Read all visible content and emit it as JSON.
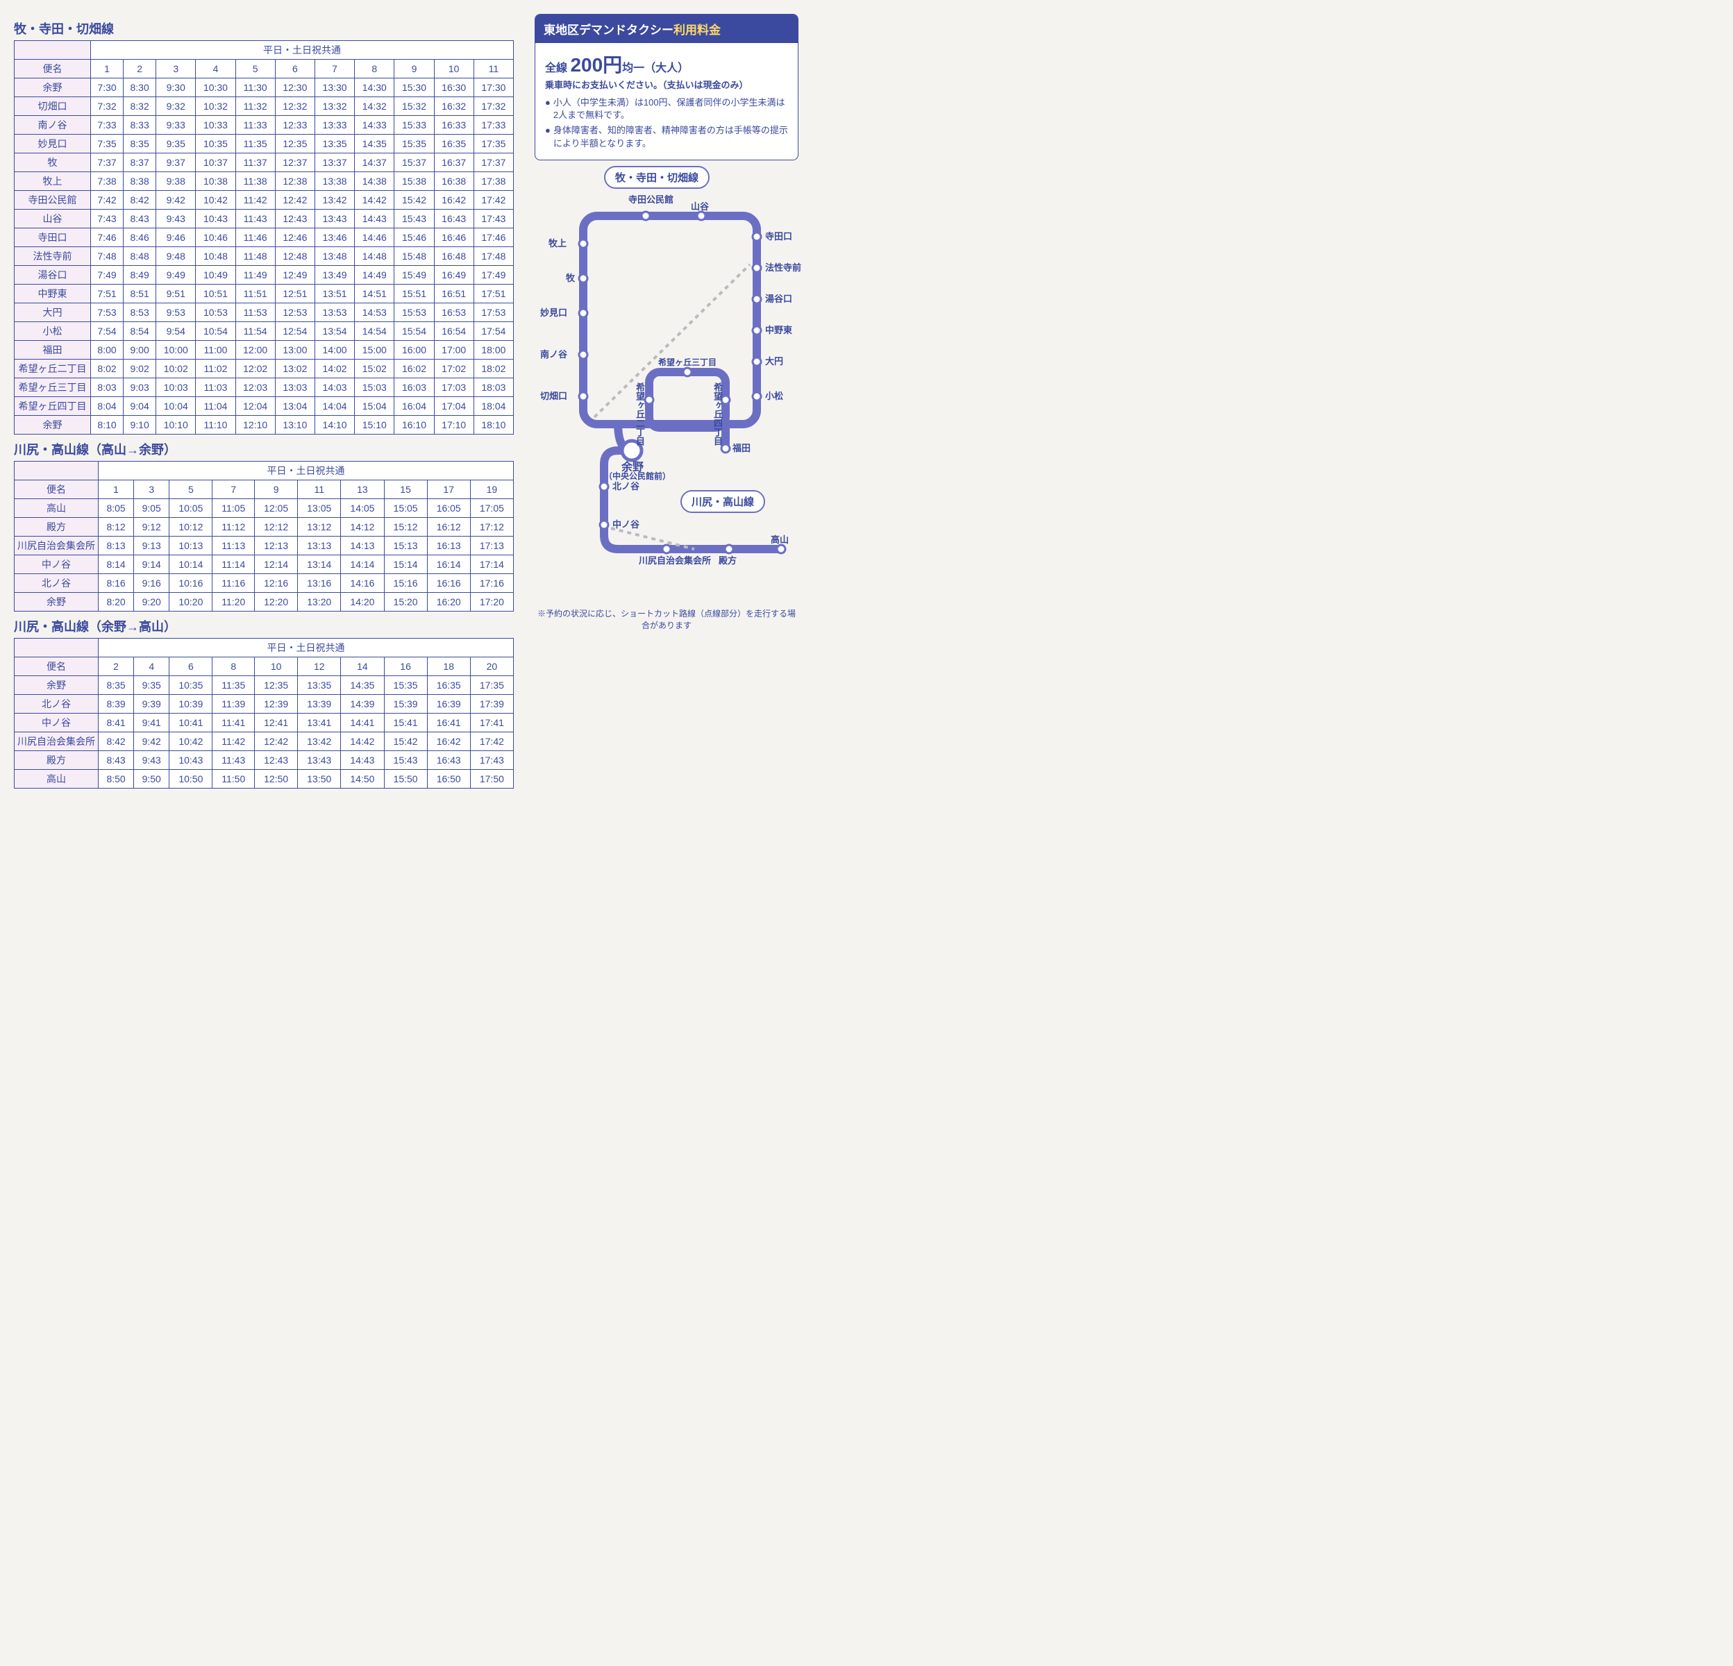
{
  "tables": [
    {
      "title": "牧・寺田・切畑線",
      "header_span": "平日・土日祝共通",
      "col_header": "便名",
      "cols": [
        "1",
        "2",
        "3",
        "4",
        "5",
        "6",
        "7",
        "8",
        "9",
        "10",
        "11"
      ],
      "rows": [
        {
          "stop": "余野",
          "times": [
            "7:30",
            "8:30",
            "9:30",
            "10:30",
            "11:30",
            "12:30",
            "13:30",
            "14:30",
            "15:30",
            "16:30",
            "17:30"
          ]
        },
        {
          "stop": "切畑口",
          "times": [
            "7:32",
            "8:32",
            "9:32",
            "10:32",
            "11:32",
            "12:32",
            "13:32",
            "14:32",
            "15:32",
            "16:32",
            "17:32"
          ]
        },
        {
          "stop": "南ノ谷",
          "times": [
            "7:33",
            "8:33",
            "9:33",
            "10:33",
            "11:33",
            "12:33",
            "13:33",
            "14:33",
            "15:33",
            "16:33",
            "17:33"
          ]
        },
        {
          "stop": "妙見口",
          "times": [
            "7:35",
            "8:35",
            "9:35",
            "10:35",
            "11:35",
            "12:35",
            "13:35",
            "14:35",
            "15:35",
            "16:35",
            "17:35"
          ]
        },
        {
          "stop": "牧",
          "times": [
            "7:37",
            "8:37",
            "9:37",
            "10:37",
            "11:37",
            "12:37",
            "13:37",
            "14:37",
            "15:37",
            "16:37",
            "17:37"
          ]
        },
        {
          "stop": "牧上",
          "times": [
            "7:38",
            "8:38",
            "9:38",
            "10:38",
            "11:38",
            "12:38",
            "13:38",
            "14:38",
            "15:38",
            "16:38",
            "17:38"
          ]
        },
        {
          "stop": "寺田公民館",
          "times": [
            "7:42",
            "8:42",
            "9:42",
            "10:42",
            "11:42",
            "12:42",
            "13:42",
            "14:42",
            "15:42",
            "16:42",
            "17:42"
          ]
        },
        {
          "stop": "山谷",
          "times": [
            "7:43",
            "8:43",
            "9:43",
            "10:43",
            "11:43",
            "12:43",
            "13:43",
            "14:43",
            "15:43",
            "16:43",
            "17:43"
          ]
        },
        {
          "stop": "寺田口",
          "times": [
            "7:46",
            "8:46",
            "9:46",
            "10:46",
            "11:46",
            "12:46",
            "13:46",
            "14:46",
            "15:46",
            "16:46",
            "17:46"
          ]
        },
        {
          "stop": "法性寺前",
          "times": [
            "7:48",
            "8:48",
            "9:48",
            "10:48",
            "11:48",
            "12:48",
            "13:48",
            "14:48",
            "15:48",
            "16:48",
            "17:48"
          ]
        },
        {
          "stop": "湯谷口",
          "times": [
            "7:49",
            "8:49",
            "9:49",
            "10:49",
            "11:49",
            "12:49",
            "13:49",
            "14:49",
            "15:49",
            "16:49",
            "17:49"
          ]
        },
        {
          "stop": "中野東",
          "times": [
            "7:51",
            "8:51",
            "9:51",
            "10:51",
            "11:51",
            "12:51",
            "13:51",
            "14:51",
            "15:51",
            "16:51",
            "17:51"
          ]
        },
        {
          "stop": "大円",
          "times": [
            "7:53",
            "8:53",
            "9:53",
            "10:53",
            "11:53",
            "12:53",
            "13:53",
            "14:53",
            "15:53",
            "16:53",
            "17:53"
          ]
        },
        {
          "stop": "小松",
          "times": [
            "7:54",
            "8:54",
            "9:54",
            "10:54",
            "11:54",
            "12:54",
            "13:54",
            "14:54",
            "15:54",
            "16:54",
            "17:54"
          ]
        },
        {
          "stop": "福田",
          "times": [
            "8:00",
            "9:00",
            "10:00",
            "11:00",
            "12:00",
            "13:00",
            "14:00",
            "15:00",
            "16:00",
            "17:00",
            "18:00"
          ]
        },
        {
          "stop": "希望ヶ丘二丁目",
          "times": [
            "8:02",
            "9:02",
            "10:02",
            "11:02",
            "12:02",
            "13:02",
            "14:02",
            "15:02",
            "16:02",
            "17:02",
            "18:02"
          ]
        },
        {
          "stop": "希望ヶ丘三丁目",
          "times": [
            "8:03",
            "9:03",
            "10:03",
            "11:03",
            "12:03",
            "13:03",
            "14:03",
            "15:03",
            "16:03",
            "17:03",
            "18:03"
          ]
        },
        {
          "stop": "希望ヶ丘四丁目",
          "times": [
            "8:04",
            "9:04",
            "10:04",
            "11:04",
            "12:04",
            "13:04",
            "14:04",
            "15:04",
            "16:04",
            "17:04",
            "18:04"
          ]
        },
        {
          "stop": "余野",
          "times": [
            "8:10",
            "9:10",
            "10:10",
            "11:10",
            "12:10",
            "13:10",
            "14:10",
            "15:10",
            "16:10",
            "17:10",
            "18:10"
          ]
        }
      ]
    },
    {
      "title": "川尻・高山線（高山→余野）",
      "header_span": "平日・土日祝共通",
      "col_header": "便名",
      "cols": [
        "1",
        "3",
        "5",
        "7",
        "9",
        "11",
        "13",
        "15",
        "17",
        "19"
      ],
      "rows": [
        {
          "stop": "高山",
          "times": [
            "8:05",
            "9:05",
            "10:05",
            "11:05",
            "12:05",
            "13:05",
            "14:05",
            "15:05",
            "16:05",
            "17:05"
          ]
        },
        {
          "stop": "殿方",
          "times": [
            "8:12",
            "9:12",
            "10:12",
            "11:12",
            "12:12",
            "13:12",
            "14:12",
            "15:12",
            "16:12",
            "17:12"
          ]
        },
        {
          "stop": "川尻自治会集会所",
          "times": [
            "8:13",
            "9:13",
            "10:13",
            "11:13",
            "12:13",
            "13:13",
            "14:13",
            "15:13",
            "16:13",
            "17:13"
          ]
        },
        {
          "stop": "中ノ谷",
          "times": [
            "8:14",
            "9:14",
            "10:14",
            "11:14",
            "12:14",
            "13:14",
            "14:14",
            "15:14",
            "16:14",
            "17:14"
          ]
        },
        {
          "stop": "北ノ谷",
          "times": [
            "8:16",
            "9:16",
            "10:16",
            "11:16",
            "12:16",
            "13:16",
            "14:16",
            "15:16",
            "16:16",
            "17:16"
          ]
        },
        {
          "stop": "余野",
          "times": [
            "8:20",
            "9:20",
            "10:20",
            "11:20",
            "12:20",
            "13:20",
            "14:20",
            "15:20",
            "16:20",
            "17:20"
          ]
        }
      ]
    },
    {
      "title": "川尻・高山線（余野→高山）",
      "header_span": "平日・土日祝共通",
      "col_header": "便名",
      "cols": [
        "2",
        "4",
        "6",
        "8",
        "10",
        "12",
        "14",
        "16",
        "18",
        "20"
      ],
      "rows": [
        {
          "stop": "余野",
          "times": [
            "8:35",
            "9:35",
            "10:35",
            "11:35",
            "12:35",
            "13:35",
            "14:35",
            "15:35",
            "16:35",
            "17:35"
          ]
        },
        {
          "stop": "北ノ谷",
          "times": [
            "8:39",
            "9:39",
            "10:39",
            "11:39",
            "12:39",
            "13:39",
            "14:39",
            "15:39",
            "16:39",
            "17:39"
          ]
        },
        {
          "stop": "中ノ谷",
          "times": [
            "8:41",
            "9:41",
            "10:41",
            "11:41",
            "12:41",
            "13:41",
            "14:41",
            "15:41",
            "16:41",
            "17:41"
          ]
        },
        {
          "stop": "川尻自治会集会所",
          "times": [
            "8:42",
            "9:42",
            "10:42",
            "11:42",
            "12:42",
            "13:42",
            "14:42",
            "15:42",
            "16:42",
            "17:42"
          ]
        },
        {
          "stop": "殿方",
          "times": [
            "8:43",
            "9:43",
            "10:43",
            "11:43",
            "12:43",
            "13:43",
            "14:43",
            "15:43",
            "16:43",
            "17:43"
          ]
        },
        {
          "stop": "高山",
          "times": [
            "8:50",
            "9:50",
            "10:50",
            "11:50",
            "12:50",
            "13:50",
            "14:50",
            "15:50",
            "16:50",
            "17:50"
          ]
        }
      ]
    }
  ],
  "fare": {
    "header_pre": "東地区デマンドタクシー",
    "header_emph": "利用料金",
    "line1_pre": "全線 ",
    "line1_price": "200円",
    "line1_post": "均一（大人）",
    "line2": "乗車時にお支払いください。（支払いは現金のみ）",
    "bullets": [
      "小人（中学生未満）は100円、保護者同伴の小学生未満は2人まで無料です。",
      "身体障害者、知的障害者、精神障害者の方は手帳等の提示により半額となります。"
    ]
  },
  "map": {
    "title1": "牧・寺田・切畑線",
    "title2": "川尻・高山線",
    "yono": "余野",
    "yono_sub": "（中央公民館前）",
    "note": "※予約の状況に応じ、ショートカット路線（点線部分）を走行する場合があります",
    "line_color": "#6b6fc4",
    "stop_color": "#ffffff",
    "stops_left": [
      "牧上",
      "牧",
      "妙見口",
      "南ノ谷",
      "切畑口"
    ],
    "stops_right": [
      "寺田口",
      "法性寺前",
      "湯谷口",
      "中野東",
      "大円",
      "小松"
    ],
    "stops_top": [
      "寺田公民館",
      "山谷"
    ],
    "inner": [
      "希望ヶ丘二丁目",
      "希望ヶ丘三丁目",
      "希望ヶ丘四丁目"
    ],
    "fukuda": "福田",
    "lower_left": [
      "北ノ谷",
      "中ノ谷"
    ],
    "lower_bottom": [
      "川尻自治会集会所",
      "殿方"
    ],
    "takayama": "高山"
  }
}
